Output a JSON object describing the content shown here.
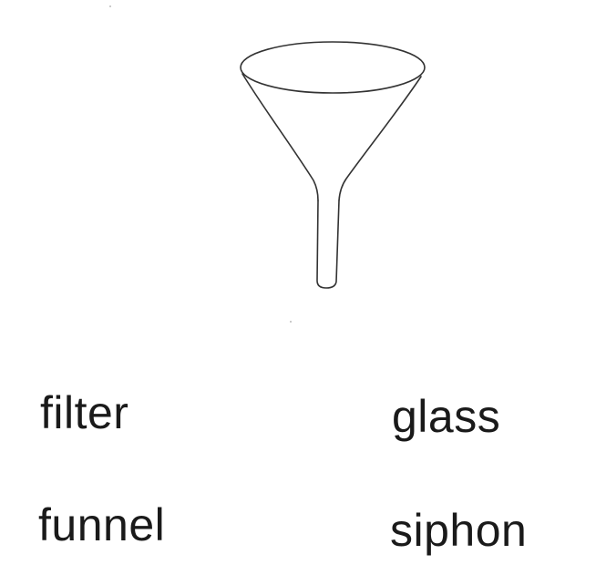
{
  "picture": {
    "icon": "funnel-icon",
    "stroke_color": "#333333"
  },
  "options": [
    {
      "label": "filter"
    },
    {
      "label": "glass"
    },
    {
      "label": "funnel"
    },
    {
      "label": "siphon"
    }
  ]
}
